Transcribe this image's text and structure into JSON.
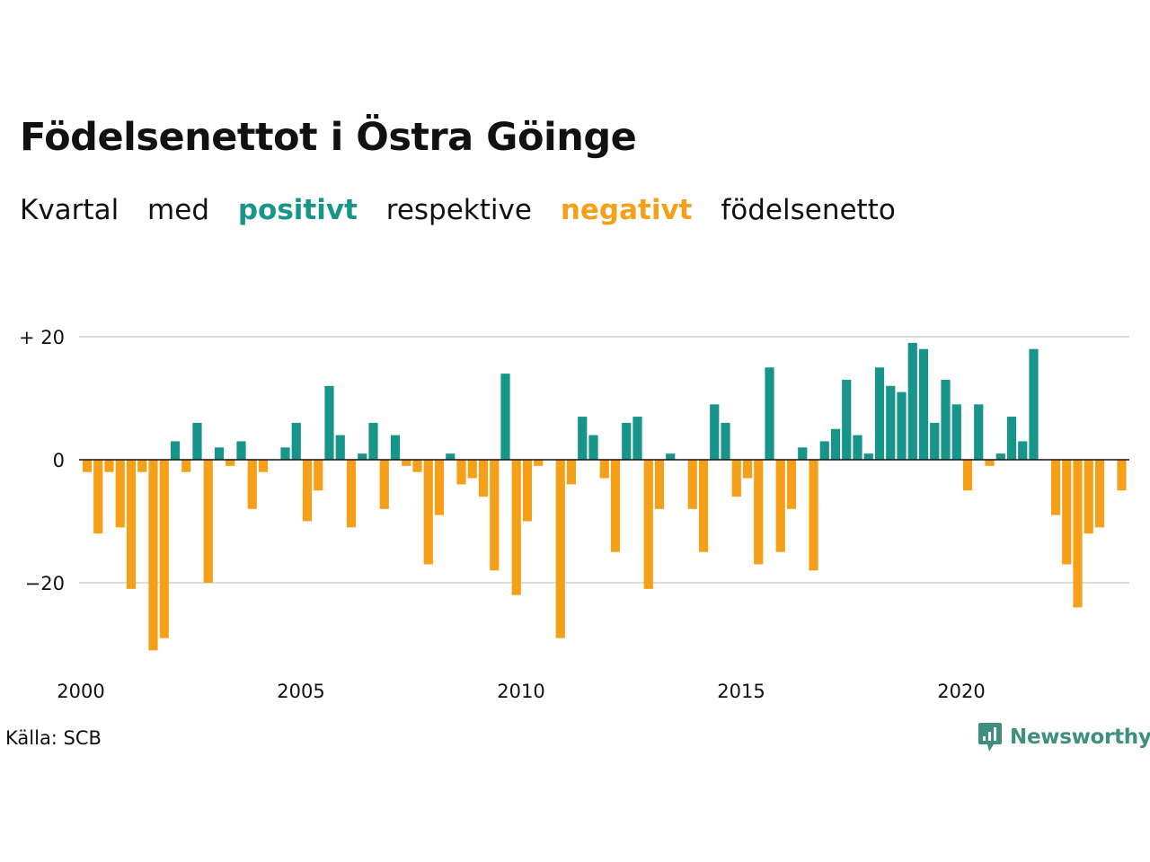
{
  "title": "Födelsenettot i Östra Göinge",
  "subtitle": {
    "prefix": "Kvartal",
    "med": "med",
    "positive": "positivt",
    "middle": "respektive",
    "negative": "negativt",
    "suffix": "födelsenetto"
  },
  "source": "Källa: SCB",
  "logo": {
    "text": "Newsworthy",
    "icon": "newsworthy-chart-bubble-icon"
  },
  "colors": {
    "positive": "#17958a",
    "negative": "#f6a01a",
    "grid": "#dddddd",
    "zero_line": "#111111",
    "logo": "#3f8f7e"
  },
  "chart_data": {
    "type": "bar",
    "xlabel": "",
    "ylabel": "",
    "ylim": [
      -33,
      22
    ],
    "xlim": [
      2000,
      2024
    ],
    "yticks": [
      {
        "value": 20,
        "label": "+ 20"
      },
      {
        "value": 0,
        "label": "0"
      },
      {
        "value": -20,
        "label": "−20"
      }
    ],
    "xticks": [
      {
        "value": 2000,
        "label": "2000"
      },
      {
        "value": 2005,
        "label": "2005"
      },
      {
        "value": 2010,
        "label": "2010"
      },
      {
        "value": 2015,
        "label": "2015"
      },
      {
        "value": 2020,
        "label": "2020"
      }
    ],
    "categories": [
      "2000K1",
      "2000K2",
      "2000K3",
      "2000K4",
      "2001K1",
      "2001K2",
      "2001K3",
      "2001K4",
      "2002K1",
      "2002K2",
      "2002K3",
      "2002K4",
      "2003K1",
      "2003K2",
      "2003K3",
      "2003K4",
      "2004K1",
      "2004K2",
      "2004K3",
      "2004K4",
      "2005K1",
      "2005K2",
      "2005K3",
      "2005K4",
      "2006K1",
      "2006K2",
      "2006K3",
      "2006K4",
      "2007K1",
      "2007K2",
      "2007K3",
      "2007K4",
      "2008K1",
      "2008K2",
      "2008K3",
      "2008K4",
      "2009K1",
      "2009K2",
      "2009K3",
      "2009K4",
      "2010K1",
      "2010K2",
      "2010K3",
      "2010K4",
      "2011K1",
      "2011K2",
      "2011K3",
      "2011K4",
      "2012K1",
      "2012K2",
      "2012K3",
      "2012K4",
      "2013K1",
      "2013K2",
      "2013K3",
      "2013K4",
      "2014K1",
      "2014K2",
      "2014K3",
      "2014K4",
      "2015K1",
      "2015K2",
      "2015K3",
      "2015K4",
      "2016K1",
      "2016K2",
      "2016K3",
      "2016K4",
      "2017K1",
      "2017K2",
      "2017K3",
      "2017K4",
      "2018K1",
      "2018K2",
      "2018K3",
      "2018K4",
      "2019K1",
      "2019K2",
      "2019K3",
      "2019K4",
      "2020K1",
      "2020K2",
      "2020K3",
      "2020K4",
      "2021K1",
      "2021K2",
      "2021K3",
      "2021K4",
      "2022K1",
      "2022K2",
      "2022K3",
      "2022K4",
      "2023K1",
      "2023K2",
      "2023K3",
      "2023K4"
    ],
    "values": [
      -2,
      -12,
      -2,
      -11,
      -21,
      -2,
      -31,
      -29,
      3,
      -2,
      6,
      -20,
      2,
      -1,
      3,
      -8,
      -2,
      0,
      2,
      6,
      -10,
      -5,
      12,
      4,
      -11,
      1,
      6,
      -8,
      4,
      -1,
      -2,
      -17,
      -9,
      1,
      -4,
      -3,
      -6,
      -18,
      14,
      -22,
      -10,
      -1,
      0,
      -29,
      -4,
      7,
      4,
      -3,
      -15,
      6,
      7,
      -21,
      -8,
      1,
      0,
      -8,
      -15,
      9,
      6,
      -6,
      -3,
      -17,
      15,
      -15,
      -8,
      2,
      -18,
      3,
      5,
      13,
      4,
      1,
      15,
      12,
      11,
      19,
      18,
      6,
      13,
      9,
      -5,
      9,
      -1,
      1,
      7,
      3,
      18,
      0,
      -9,
      -17,
      -24,
      -12,
      -11,
      0,
      -5,
      0
    ]
  }
}
